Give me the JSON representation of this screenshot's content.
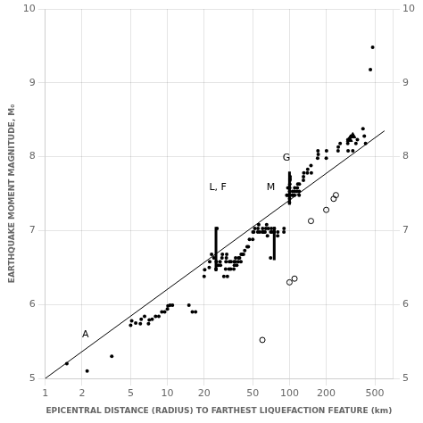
{
  "chart_data": {
    "type": "scatter",
    "xlabel": "EPICENTRAL DISTANCE (RADIUS) TO FARTHEST LIQUEFACTION FEATURE (km)",
    "ylabel": "EARTHQUAKE MOMENT MAGNITUDE, M₀",
    "log": "x",
    "grid": true,
    "xlim": [
      1,
      700
    ],
    "xticks": [
      1,
      2,
      5,
      10,
      20,
      50,
      100,
      200,
      500
    ],
    "ylim": [
      5,
      10
    ],
    "yticks": [
      5,
      6,
      7,
      8,
      9,
      10
    ],
    "y2lim": [
      5,
      10
    ],
    "y2ticks": [
      5,
      6,
      7,
      8,
      9,
      10
    ],
    "color": "#000000",
    "series": [
      {
        "type": "line",
        "color": "#000000",
        "x": [
          1.0,
          600.0
        ],
        "values": [
          5.0,
          8.35
        ]
      },
      {
        "type": "scatter",
        "marker": "circle",
        "color": "#000000",
        "x": [
          1.5,
          2.2,
          3.5,
          5.0,
          5.1,
          5.5,
          6.0,
          6.1,
          6.5,
          7.0,
          7.1,
          7.5,
          8.0,
          8.5,
          9.0,
          9.5,
          10.0,
          10.1,
          10.5,
          11.0,
          15.0,
          16.0,
          17.0,
          20.0,
          20.2,
          22.0,
          22.2,
          23.0,
          24.0,
          25.5,
          25.0,
          25.2,
          26.0,
          27.0,
          27.2,
          28.0,
          28.2,
          29.0,
          30.0,
          30.2,
          30.4,
          30.6,
          31.0,
          32.0,
          32.2,
          33.0,
          33.2,
          35.0,
          35.2,
          35.4,
          36.0,
          36.2,
          37.0,
          38.0,
          38.2,
          39.0,
          40.0,
          40.2,
          41.0,
          42.0,
          43.0,
          45.0,
          46.0,
          47.0,
          50.0,
          50.2,
          51.0,
          52.0,
          55.0,
          55.2,
          56.0,
          57.0,
          60.0,
          60.2,
          61.0,
          62.0,
          63.0,
          64.0,
          65.0,
          66.0,
          67.0,
          70.0,
          70.2,
          71.0,
          72.0,
          75.0,
          75.2,
          80.0,
          80.2,
          90.0,
          90.2,
          95.0,
          96.0,
          97.0,
          100.0,
          100.2,
          100.4,
          100.6,
          100.8,
          101.0,
          101.2,
          100.0,
          100.2,
          105.0,
          106.0,
          107.0,
          110.0,
          110.2,
          110.4,
          115.0,
          116.0,
          117.0,
          120.0,
          120.2,
          120.4,
          130.0,
          130.2,
          131.0,
          140.0,
          141.0,
          150.0,
          151.0,
          170.0,
          171.0,
          172.0,
          200.0,
          201.0,
          250.0,
          251.0,
          260.0,
          300.0,
          301.0,
          302.0,
          320.0,
          330.0,
          350.0,
          360.0,
          400.0,
          410.0,
          420.0,
          460.0,
          480.0
        ],
        "values": [
          5.2,
          5.1,
          5.3,
          5.72,
          5.78,
          5.75,
          5.74,
          5.8,
          5.84,
          5.74,
          5.79,
          5.8,
          5.84,
          5.84,
          5.9,
          5.9,
          5.94,
          5.98,
          5.99,
          5.99,
          5.99,
          5.9,
          5.9,
          6.38,
          6.47,
          6.5,
          6.58,
          6.68,
          6.63,
          7.03,
          6.48,
          6.58,
          6.53,
          6.58,
          6.53,
          6.63,
          6.68,
          6.38,
          6.48,
          6.58,
          6.63,
          6.68,
          6.38,
          6.48,
          6.58,
          6.48,
          6.58,
          6.48,
          6.58,
          6.53,
          6.58,
          6.63,
          6.53,
          6.58,
          6.63,
          6.63,
          6.58,
          6.68,
          6.68,
          6.68,
          6.73,
          6.78,
          6.78,
          6.88,
          6.88,
          6.98,
          6.98,
          7.03,
          6.98,
          7.03,
          7.08,
          6.98,
          6.98,
          7.03,
          6.98,
          6.98,
          6.98,
          7.03,
          7.08,
          6.93,
          7.03,
          6.63,
          6.98,
          7.03,
          6.98,
          6.98,
          7.03,
          6.93,
          6.98,
          6.98,
          7.03,
          7.48,
          7.48,
          7.58,
          7.48,
          7.53,
          7.58,
          7.63,
          7.68,
          7.7,
          7.73,
          7.38,
          7.43,
          7.48,
          7.53,
          7.48,
          7.48,
          7.53,
          7.58,
          7.53,
          7.58,
          7.63,
          7.48,
          7.53,
          7.63,
          7.68,
          7.73,
          7.78,
          7.78,
          7.83,
          7.88,
          7.78,
          7.98,
          8.08,
          8.03,
          7.98,
          8.08,
          8.08,
          8.13,
          8.18,
          8.18,
          8.23,
          8.08,
          8.28,
          8.08,
          8.18,
          8.23,
          8.38,
          8.28,
          8.18,
          9.18,
          9.48
        ]
      },
      {
        "type": "scatter",
        "marker": "open_circle",
        "color": "#000000",
        "x": [
          60.0,
          100.0,
          110.0,
          150.0,
          200.0,
          230.0,
          240.0
        ],
        "values": [
          5.52,
          6.3,
          6.35,
          7.13,
          7.28,
          7.43,
          7.48
        ]
      },
      {
        "type": "scatter",
        "marker": "triangle",
        "color": "#000000",
        "x": [
          310.0,
          330.0
        ],
        "values": [
          8.23,
          8.28
        ]
      }
    ],
    "vertical_bars": {
      "color": "#000000",
      "x": [
        25.0,
        75.0,
        100.0
      ],
      "low": [
        6.45,
        6.6,
        7.35
      ],
      "high": [
        7.05,
        7.05,
        7.8
      ]
    },
    "annotations": [
      {
        "text": "A",
        "x": 2.0,
        "y": 5.52
      },
      {
        "text": "L, F",
        "x": 22.0,
        "y": 7.52
      },
      {
        "text": "M",
        "x": 65.0,
        "y": 7.52
      },
      {
        "text": "G",
        "x": 88.0,
        "y": 7.92
      }
    ]
  }
}
